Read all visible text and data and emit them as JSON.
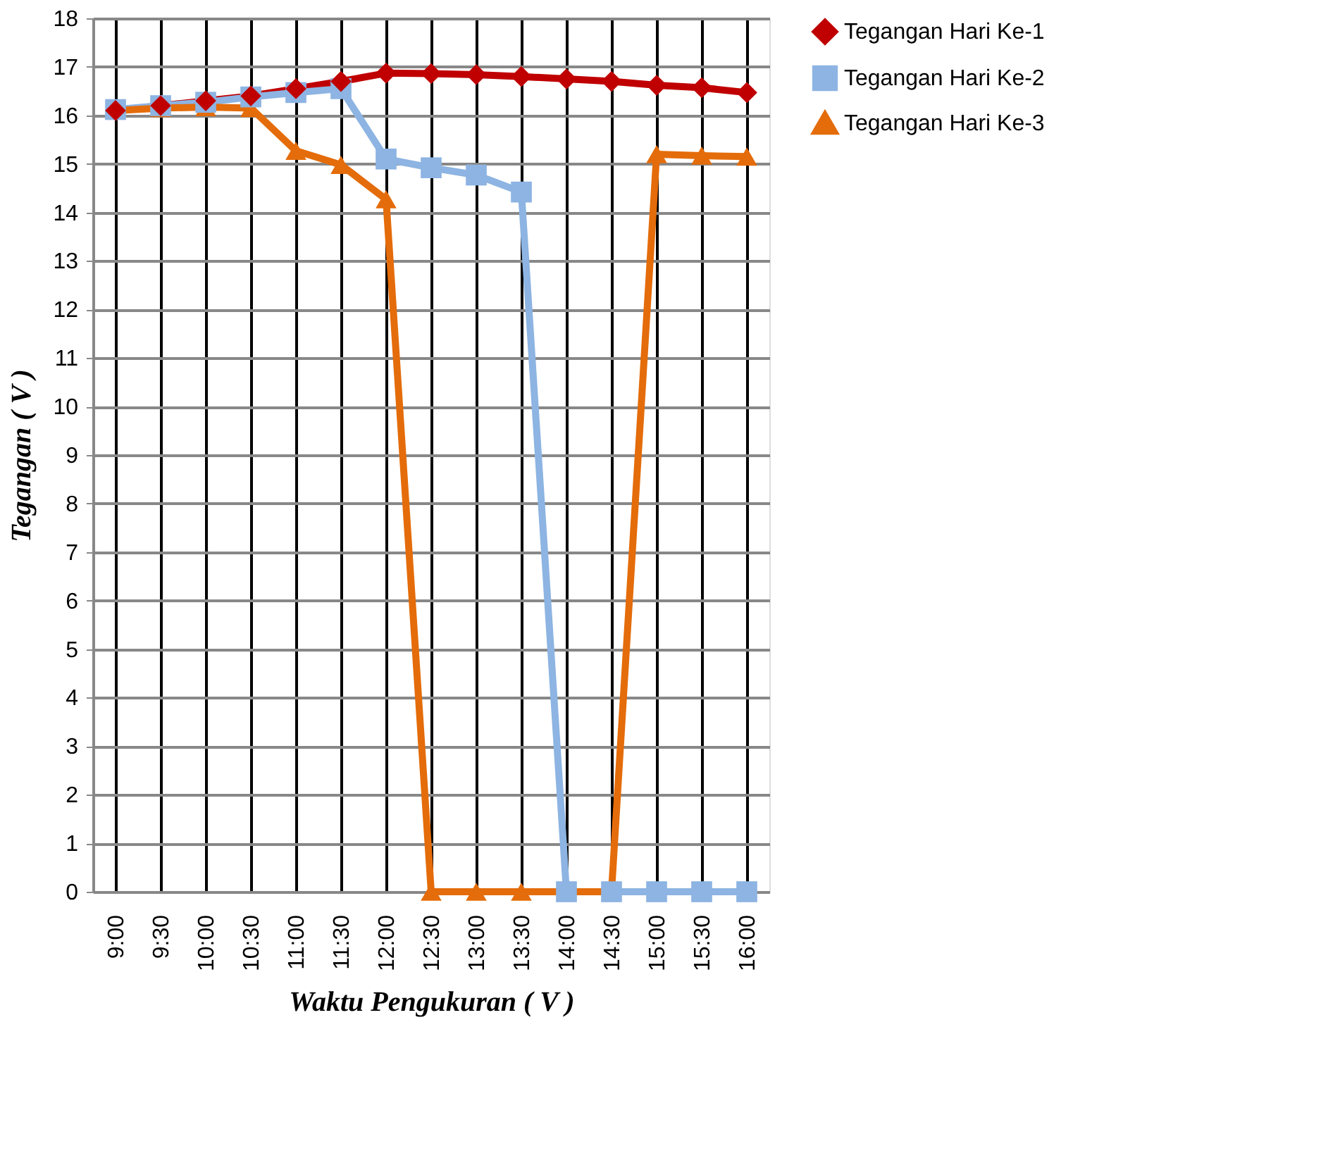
{
  "chart_data": {
    "type": "line",
    "xlabel": "Waktu Pengukuran ( V )",
    "ylabel": "Tegangan ( V )",
    "categories": [
      "9:00",
      "9:30",
      "10:00",
      "10:30",
      "11:00",
      "11:30",
      "12:00",
      "12:30",
      "13:00",
      "13:30",
      "14:00",
      "14:30",
      "15:00",
      "15:30",
      "16:00"
    ],
    "series": [
      {
        "name": "Tegangan Hari Ke-1",
        "color": "#c00000",
        "marker": "diamond",
        "values": [
          16.1,
          16.2,
          16.3,
          16.4,
          16.55,
          16.7,
          16.87,
          16.86,
          16.84,
          16.8,
          16.75,
          16.7,
          16.62,
          16.57,
          16.47
        ]
      },
      {
        "name": "Tegangan Hari Ke-2",
        "color": "#8db4e2",
        "marker": "square",
        "values": [
          16.12,
          16.2,
          16.27,
          16.38,
          16.47,
          16.55,
          15.1,
          14.92,
          14.77,
          14.42,
          0,
          0,
          0,
          0,
          0
        ]
      },
      {
        "name": "Tegangan Hari Ke-3",
        "color": "#e46c0a",
        "marker": "triangle",
        "values": [
          16.1,
          16.15,
          16.17,
          16.15,
          15.27,
          14.98,
          14.27,
          0,
          0,
          0,
          0,
          0,
          15.2,
          15.17,
          15.15
        ]
      }
    ],
    "ylim": [
      0,
      18
    ],
    "yticks": [
      0,
      1,
      2,
      3,
      4,
      5,
      6,
      7,
      8,
      9,
      10,
      11,
      12,
      13,
      14,
      15,
      16,
      17,
      18
    ],
    "grid": true,
    "legend": "right",
    "line_style": "solid"
  }
}
